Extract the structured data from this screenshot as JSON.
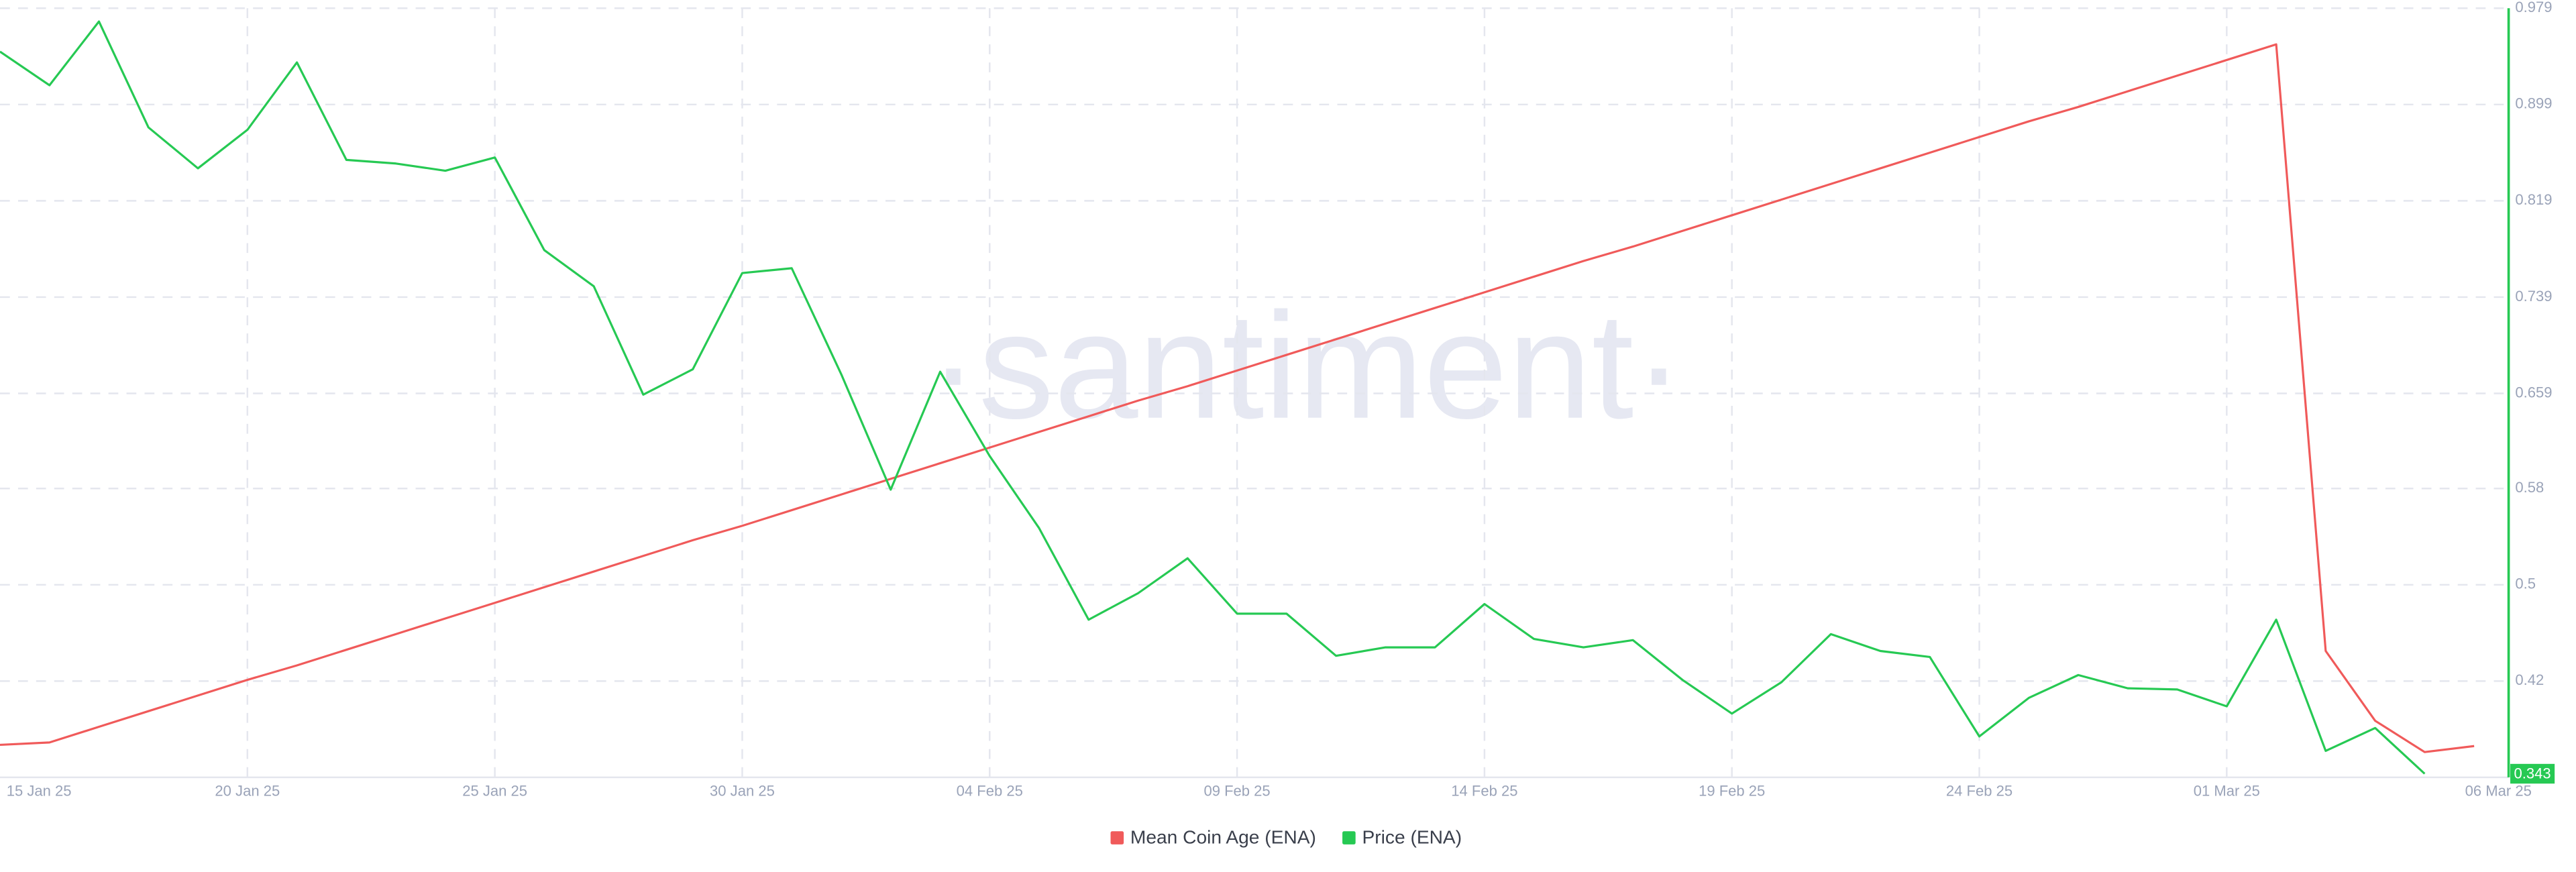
{
  "chart_data": {
    "type": "line",
    "watermark": "·santiment·",
    "categories": [
      "15 Jan 25",
      null,
      null,
      null,
      null,
      "20 Jan 25",
      null,
      null,
      null,
      null,
      "25 Jan 25",
      null,
      null,
      null,
      null,
      "30 Jan 25",
      null,
      null,
      null,
      null,
      "04 Feb 25",
      null,
      null,
      null,
      null,
      "09 Feb 25",
      null,
      null,
      null,
      null,
      "14 Feb 25",
      null,
      null,
      null,
      null,
      "19 Feb 25",
      null,
      null,
      null,
      null,
      "24 Feb 25",
      null,
      null,
      null,
      null,
      "01 Mar 25",
      null,
      null,
      null,
      null,
      "06 Mar 25"
    ],
    "series": [
      {
        "name": "Mean Coin Age (ENA)",
        "color": "#f05a5a",
        "values": [
          0.367,
          0.369,
          0.382,
          0.395,
          0.408,
          0.421,
          0.433,
          0.446,
          0.459,
          0.472,
          0.485,
          0.498,
          0.511,
          0.524,
          0.537,
          0.549,
          0.562,
          0.575,
          0.588,
          0.601,
          0.614,
          0.627,
          0.64,
          0.653,
          0.665,
          0.678,
          0.691,
          0.704,
          0.717,
          0.73,
          0.743,
          0.756,
          0.769,
          0.781,
          0.794,
          0.807,
          0.82,
          0.833,
          0.846,
          0.859,
          0.872,
          0.885,
          0.897,
          0.91,
          0.923,
          0.936,
          0.949,
          0.445,
          0.387,
          0.361,
          0.366
        ]
      },
      {
        "name": "Price (ENA)",
        "color": "#26c953",
        "values": [
          0.943,
          0.915,
          0.968,
          0.88,
          0.846,
          0.878,
          0.934,
          0.853,
          0.85,
          0.844,
          0.855,
          0.778,
          0.748,
          0.658,
          0.679,
          0.759,
          0.763,
          0.675,
          0.579,
          0.677,
          0.607,
          0.547,
          0.471,
          0.493,
          0.522,
          0.476,
          0.476,
          0.441,
          0.448,
          0.448,
          0.484,
          0.455,
          0.448,
          0.454,
          0.421,
          0.393,
          0.419,
          0.459,
          0.445,
          0.44,
          0.374,
          0.406,
          0.425,
          0.414,
          0.413,
          0.399,
          0.471,
          0.362,
          0.381,
          0.343,
          null
        ]
      }
    ],
    "ylim": [
      0.34,
      0.979
    ],
    "yticks": [
      0.42,
      0.5,
      0.58,
      0.659,
      0.739,
      0.819,
      0.899,
      0.979
    ],
    "grid": true,
    "axis_color": "#26c953"
  }
}
